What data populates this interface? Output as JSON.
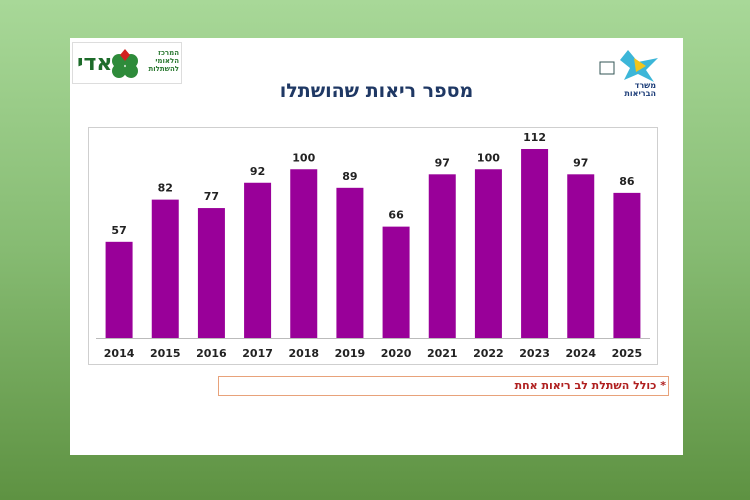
{
  "logos": {
    "adi": "אדי",
    "center": "המרכז הלאומי להשתלות",
    "ministry": "משרד הבריאות"
  },
  "chart_data": {
    "type": "bar",
    "title": "מספר ריאות שהושתלו",
    "categories": [
      "2014",
      "2015",
      "2016",
      "2017",
      "2018",
      "2019",
      "2020",
      "2021",
      "2022",
      "2023",
      "2024",
      "2025"
    ],
    "values": [
      57,
      82,
      77,
      92,
      100,
      89,
      66,
      97,
      100,
      112,
      97,
      86
    ],
    "color": "#990099"
  },
  "footnote": "* כולל השתלת לב ריאות אחת"
}
